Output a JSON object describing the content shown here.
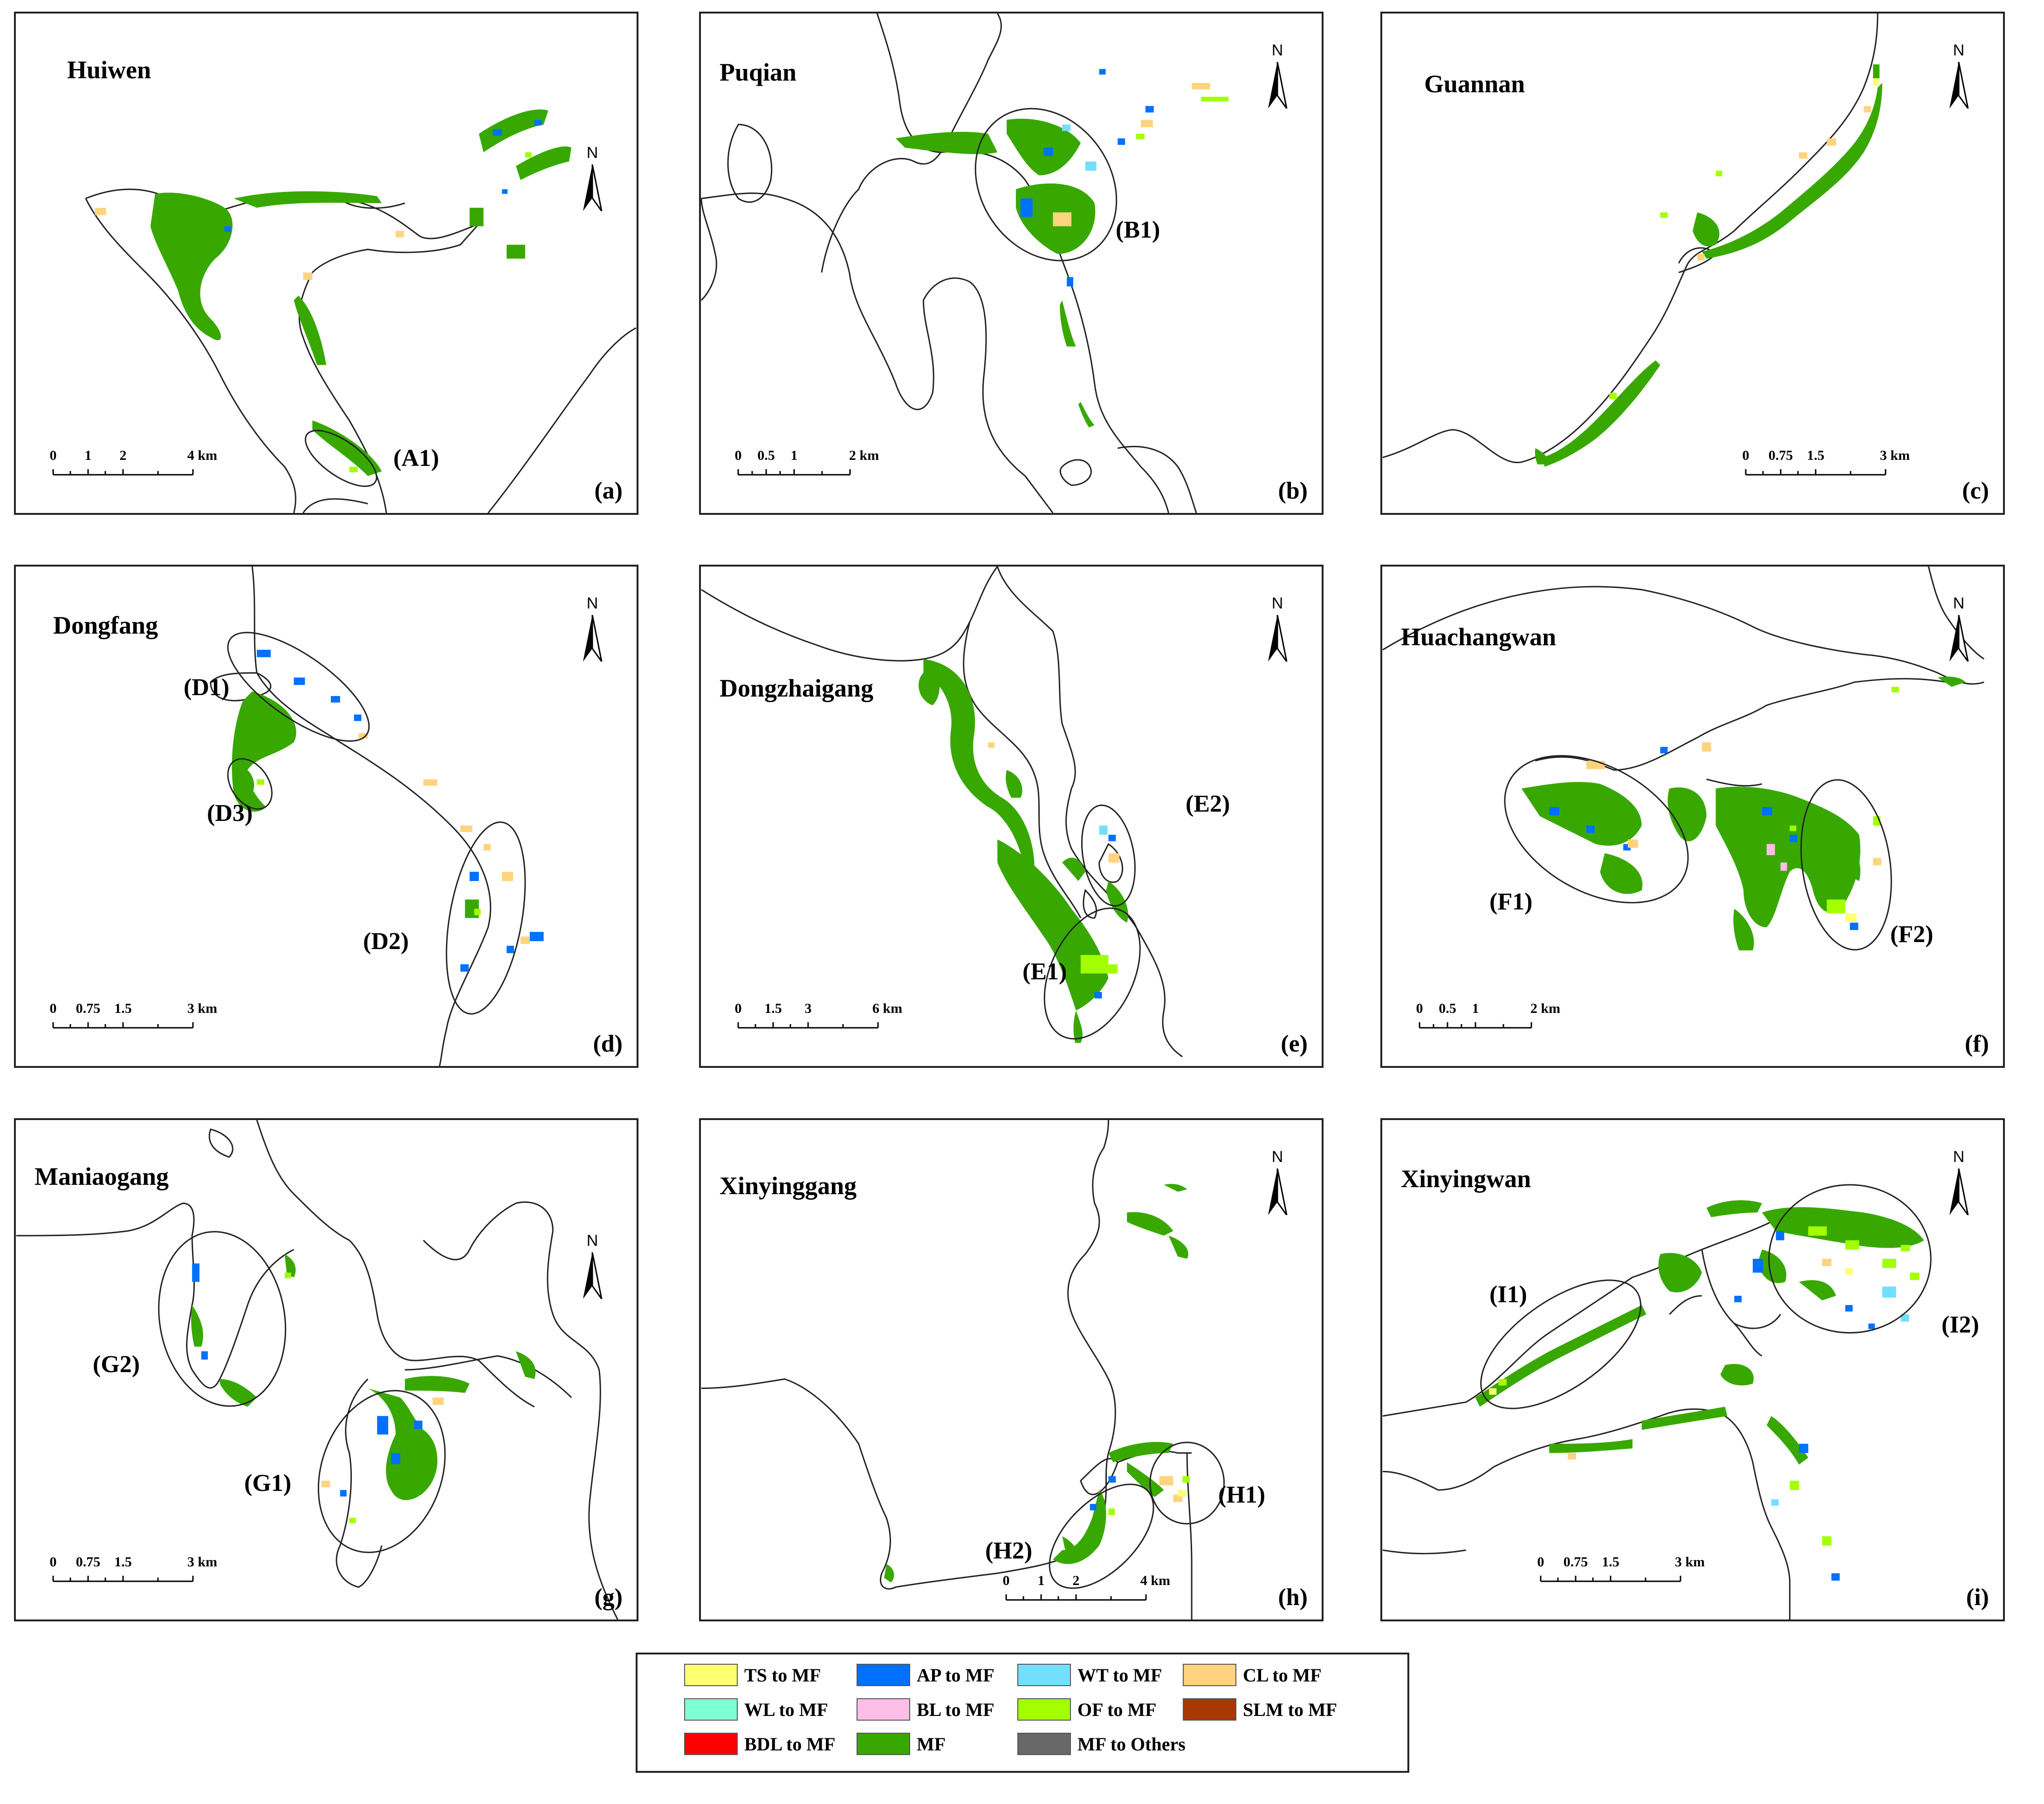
{
  "panels": [
    {
      "site": "Huiwen",
      "letter": "(a)",
      "scale_labels": [
        "0",
        "1",
        "2",
        "4 km"
      ],
      "annotations": [
        "(A1)"
      ]
    },
    {
      "site": "Puqian",
      "letter": "(b)",
      "scale_labels": [
        "0",
        "0.5",
        "1",
        "2 km"
      ],
      "annotations": [
        "(B1)"
      ]
    },
    {
      "site": "Guannan",
      "letter": "(c)",
      "scale_labels": [
        "0",
        "0.75",
        "1.5",
        "3 km"
      ],
      "annotations": []
    },
    {
      "site": "Dongfang",
      "letter": "(d)",
      "scale_labels": [
        "0",
        "0.75",
        "1.5",
        "3 km"
      ],
      "annotations": [
        "(D1)",
        "(D3)",
        "(D2)"
      ]
    },
    {
      "site": "Dongzhaigang",
      "letter": "(e)",
      "scale_labels": [
        "0",
        "1.5",
        "3",
        "6 km"
      ],
      "annotations": [
        "(E2)",
        "(E1)"
      ]
    },
    {
      "site": "Huachangwan",
      "letter": "(f)",
      "scale_labels": [
        "0",
        "0.5",
        "1",
        "2 km"
      ],
      "annotations": [
        "(F1)",
        "(F2)"
      ]
    },
    {
      "site": "Maniaogang",
      "letter": "(g)",
      "scale_labels": [
        "0",
        "0.75",
        "1.5",
        "3 km"
      ],
      "annotations": [
        "(G2)",
        "(G1)"
      ]
    },
    {
      "site": "Xinyinggang",
      "letter": "(h)",
      "scale_labels": [
        "0",
        "1",
        "2",
        "4 km"
      ],
      "annotations": [
        "(H2)",
        "(H1)"
      ]
    },
    {
      "site": "Xinyingwan",
      "letter": "(i)",
      "scale_labels": [
        "0",
        "0.75",
        "1.5",
        "3 km"
      ],
      "annotations": [
        "(I1)",
        "(I2)"
      ]
    }
  ],
  "north_label": "N",
  "legend": [
    {
      "label": "TS to MF",
      "color": "#ffff73"
    },
    {
      "label": "AP to MF",
      "color": "#0070ff"
    },
    {
      "label": "WT to MF",
      "color": "#73dfff"
    },
    {
      "label": "CL to MF",
      "color": "#ffd37f"
    },
    {
      "label": "WL to MF",
      "color": "#7fffd4"
    },
    {
      "label": "BL to MF",
      "color": "#ffbee8"
    },
    {
      "label": "OF to MF",
      "color": "#a3ff00"
    },
    {
      "label": "SLM to MF",
      "color": "#a83800"
    },
    {
      "label": "BDL to MF",
      "color": "#ff0000"
    },
    {
      "label": "MF",
      "color": "#38a800"
    },
    {
      "label": "MF to Others",
      "color": "#686868"
    }
  ]
}
